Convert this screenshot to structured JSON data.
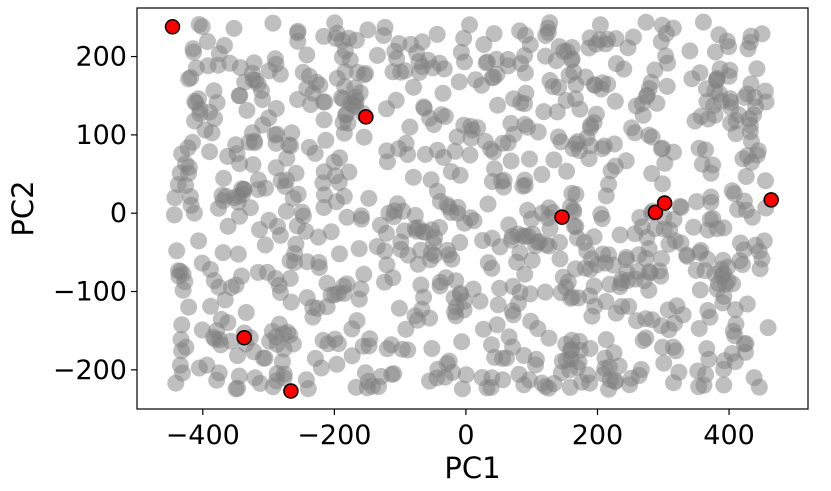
{
  "chart_data": {
    "type": "scatter",
    "title": "",
    "xlabel": "PC1",
    "ylabel": "PC2",
    "xlim": [
      -500,
      520
    ],
    "ylim": [
      -250,
      262
    ],
    "xticks": [
      -400,
      -200,
      0,
      200,
      400
    ],
    "yticks": [
      -200,
      -100,
      0,
      100,
      200
    ],
    "xtick_labels": [
      "−400",
      "−200",
      "0",
      "200",
      "400"
    ],
    "ytick_labels": [
      "−200",
      "−100",
      "0",
      "100",
      "200"
    ],
    "grid": false,
    "legend": "none",
    "background_series": {
      "color": "#808080",
      "alpha": 0.5,
      "count_approx": 900,
      "x_range": [
        -445,
        460
      ],
      "y_range": [
        -225,
        245
      ],
      "distribution": "uniform"
    },
    "highlighted_points": {
      "color": "#ff0000",
      "edgecolor": "#000000",
      "points": [
        {
          "x": -446,
          "y": 238
        },
        {
          "x": -152,
          "y": 123
        },
        {
          "x": -337,
          "y": -159
        },
        {
          "x": -266,
          "y": -227
        },
        {
          "x": 146,
          "y": -5
        },
        {
          "x": 288,
          "y": 1
        },
        {
          "x": 302,
          "y": 13
        },
        {
          "x": 464,
          "y": 17
        }
      ]
    }
  }
}
